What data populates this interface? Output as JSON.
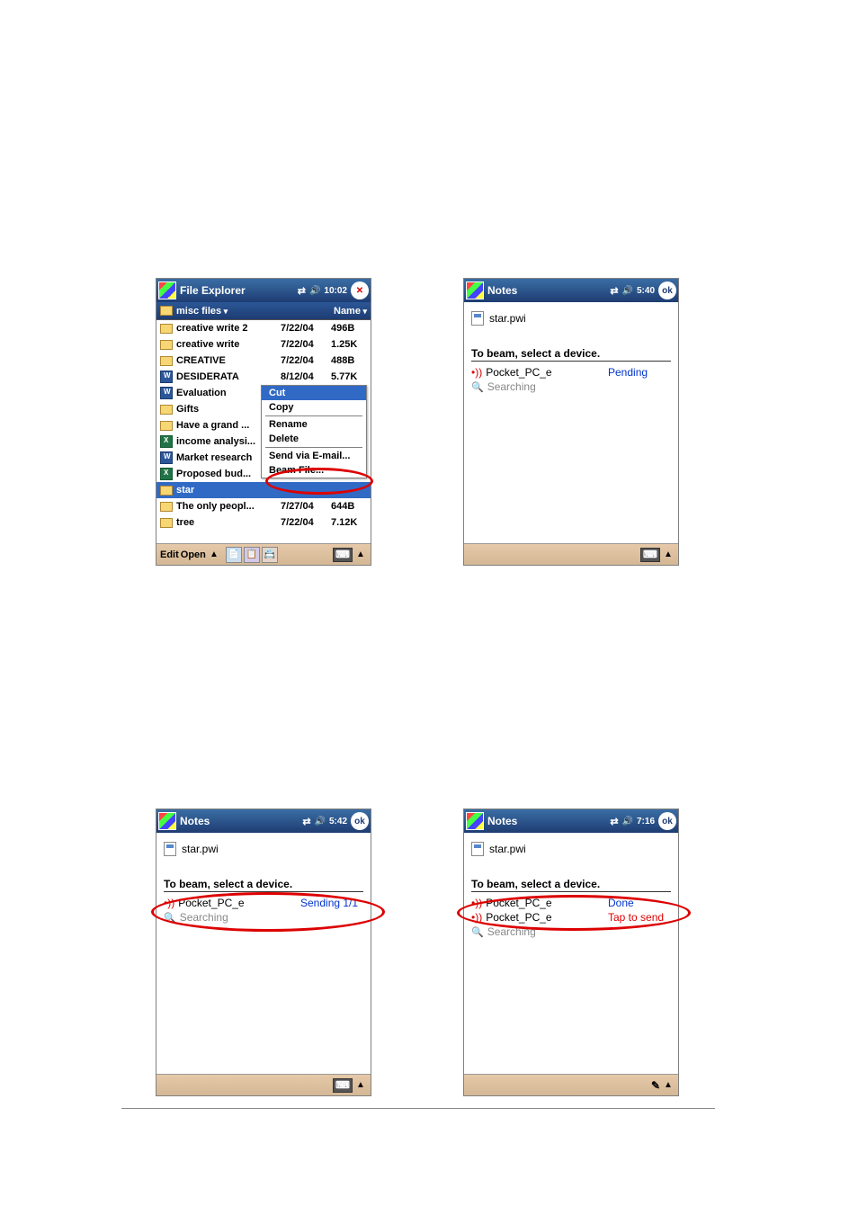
{
  "screen1": {
    "title": "File Explorer",
    "time": "10:02",
    "header_left": "misc files",
    "header_right": "Name",
    "files": [
      {
        "icon": "folder",
        "name": "creative write 2",
        "date": "7/22/04",
        "size": "496B"
      },
      {
        "icon": "folder",
        "name": "creative write",
        "date": "7/22/04",
        "size": "1.25K"
      },
      {
        "icon": "folder",
        "name": "CREATIVE",
        "date": "7/22/04",
        "size": "488B"
      },
      {
        "icon": "word",
        "name": "DESIDERATA",
        "date": "8/12/04",
        "size": "5.77K"
      },
      {
        "icon": "word",
        "name": "Evaluation",
        "date": "",
        "size": ""
      },
      {
        "icon": "folder",
        "name": "Gifts",
        "date": "",
        "size": ""
      },
      {
        "icon": "folder",
        "name": "Have a grand ...",
        "date": "",
        "size": ""
      },
      {
        "icon": "excel",
        "name": "income analysi...",
        "date": "",
        "size": ""
      },
      {
        "icon": "word",
        "name": "Market research",
        "date": "",
        "size": ""
      },
      {
        "icon": "excel",
        "name": "Proposed bud...",
        "date": "",
        "size": ""
      },
      {
        "icon": "folder",
        "name": "star",
        "date": "",
        "size": "",
        "selected": true
      },
      {
        "icon": "folder",
        "name": "The only peopl...",
        "date": "7/27/04",
        "size": "644B"
      },
      {
        "icon": "folder",
        "name": "tree",
        "date": "7/22/04",
        "size": "7.12K"
      }
    ],
    "menu": {
      "items": [
        "Cut",
        "Copy",
        "Rename",
        "Delete",
        "Send via E-mail...",
        "Beam File..."
      ],
      "selected": 0
    },
    "bottombar": {
      "edit": "Edit",
      "open": "Open"
    }
  },
  "screen2": {
    "title": "Notes",
    "time": "5:40",
    "file": "star.pwi",
    "section": "To beam, select a device.",
    "devices": [
      {
        "icon": "ir",
        "name": "Pocket_PC_e",
        "status": "Pending",
        "color": "blue"
      },
      {
        "icon": "search",
        "name": "Searching",
        "status": "",
        "grey": true
      }
    ]
  },
  "screen3": {
    "title": "Notes",
    "time": "5:42",
    "file": "star.pwi",
    "section": "To beam, select a device.",
    "devices": [
      {
        "icon": "ir",
        "name": "Pocket_PC_e",
        "status": "Sending 1/1",
        "color": "blue"
      },
      {
        "icon": "search",
        "name": "Searching",
        "status": "",
        "grey": true
      }
    ]
  },
  "screen4": {
    "title": "Notes",
    "time": "7:16",
    "file": "star.pwi",
    "section": "To beam, select a device.",
    "devices": [
      {
        "icon": "ir",
        "name": "Pocket_PC_e",
        "status": "Done",
        "color": "blue"
      },
      {
        "icon": "ir",
        "name": "Pocket_PC_e",
        "status": "Tap to send",
        "color": "red"
      },
      {
        "icon": "search",
        "name": "Searching",
        "status": "",
        "grey": true
      }
    ]
  },
  "ok_label": "ok"
}
